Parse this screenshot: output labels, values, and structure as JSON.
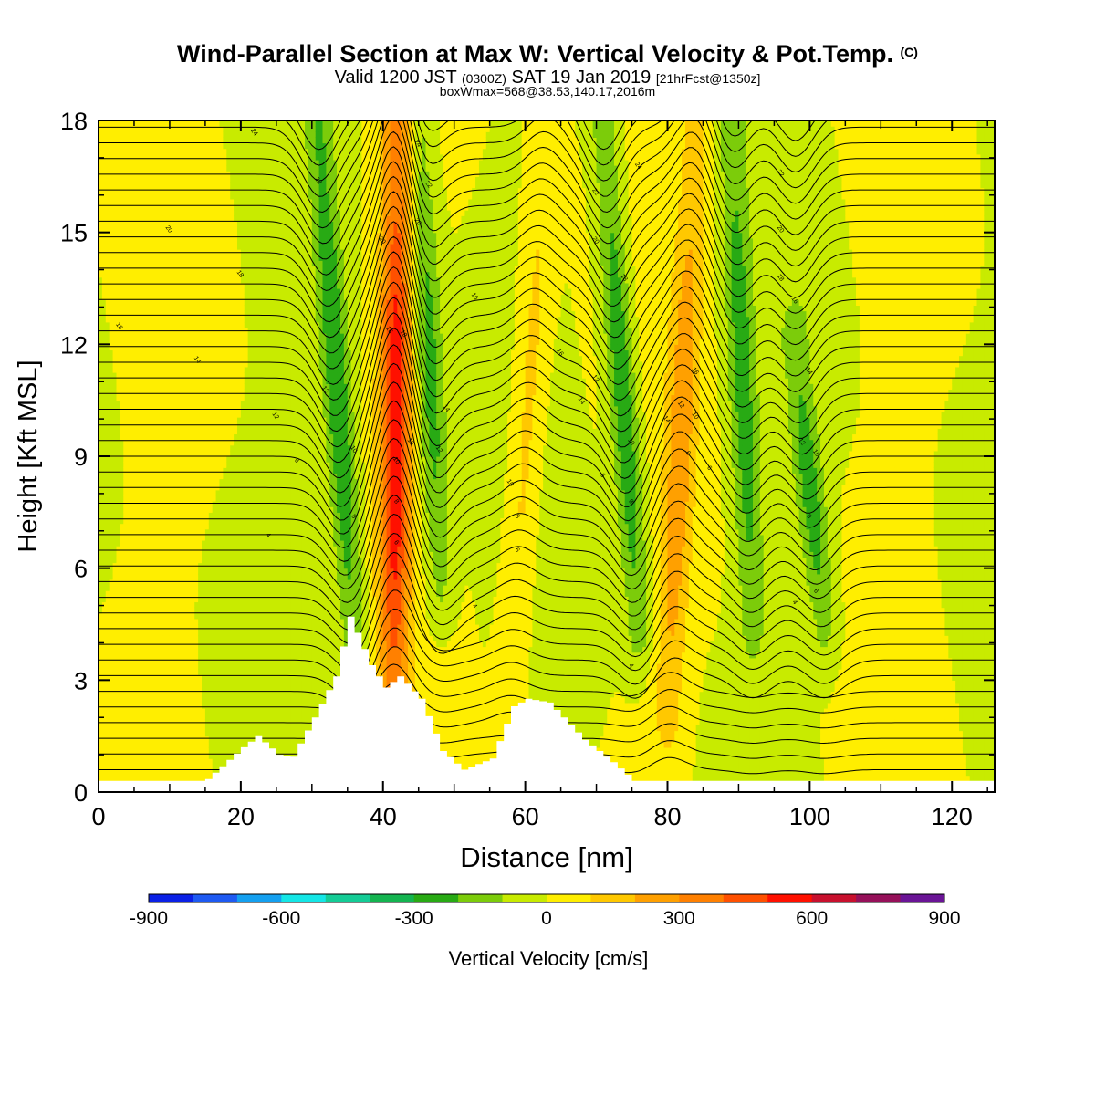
{
  "titles": {
    "main": "Wind-Parallel Section at Max W: Vertical Velocity & Pot.Temp.",
    "main_tag": "(C)",
    "valid_prefix": "Valid 1200 JST",
    "valid_utc": "(0300Z)",
    "valid_date": "SAT 19 Jan 2019",
    "valid_fcst": "[21hrFcst@1350z]",
    "box": "boxWmax=568@38.53,140.17,2016m"
  },
  "chart_data": {
    "type": "heatmap",
    "xlabel": "Distance [nm]",
    "ylabel": "Height [Kft MSL]",
    "xlim": [
      0,
      126
    ],
    "ylim": [
      0,
      18
    ],
    "x_ticks": [
      "0",
      "20",
      "40",
      "60",
      "80",
      "100",
      "120"
    ],
    "y_ticks": [
      "0",
      "3",
      "6",
      "9",
      "12",
      "15",
      "18"
    ],
    "grid": false,
    "colorbar": {
      "label": "Vertical Velocity [cm/s]",
      "placement": "bottom",
      "tick_labels": [
        "-900",
        "-600",
        "-300",
        "0",
        "300",
        "600",
        "900"
      ],
      "levels": [
        -900,
        -800,
        -700,
        -600,
        -500,
        -400,
        -300,
        -200,
        -100,
        0,
        100,
        200,
        300,
        400,
        500,
        600,
        700,
        800,
        900
      ],
      "colors": [
        "#0a20e6",
        "#1e5af2",
        "#14a0f0",
        "#14e6e6",
        "#14cc96",
        "#14b450",
        "#28aa14",
        "#7ccc0a",
        "#c8eb00",
        "#ffee00",
        "#ffc800",
        "#ffa000",
        "#ff8000",
        "#ff5000",
        "#ff1000",
        "#c8102e",
        "#96105a",
        "#6a1496"
      ]
    },
    "terrain_kft": {
      "x": [
        0,
        14,
        15,
        20,
        22,
        25,
        27,
        30,
        33,
        35,
        38,
        40,
        42,
        45,
        48,
        51,
        55,
        58,
        60,
        63,
        65,
        68,
        72,
        75,
        76,
        126
      ],
      "top": [
        0,
        0,
        0.35,
        1.2,
        1.5,
        1.0,
        0.95,
        2.0,
        3.1,
        4.7,
        3.4,
        2.8,
        3.1,
        2.5,
        1.1,
        0.6,
        0.9,
        2.3,
        2.5,
        2.4,
        2.0,
        1.4,
        0.8,
        0.3,
        0,
        0
      ]
    },
    "vertical_velocity_features": [
      {
        "sign": "down",
        "x_bottom_nm": 36,
        "x_top_nm": 31,
        "z_bottom_kft": 4,
        "z_top_kft": 18,
        "peak_cms": -300
      },
      {
        "sign": "up",
        "x_bottom_nm": 41.5,
        "x_top_nm": 42,
        "z_bottom_kft": 3,
        "z_top_kft": 18,
        "peak_cms": 568
      },
      {
        "sign": "down",
        "x_bottom_nm": 48,
        "x_top_nm": 45,
        "z_bottom_kft": 5.5,
        "z_top_kft": 18,
        "peak_cms": -250
      },
      {
        "sign": "up",
        "x_bottom_nm": 58,
        "x_top_nm": 63,
        "z_bottom_kft": 3,
        "z_top_kft": 18,
        "peak_cms": 150
      },
      {
        "sign": "down",
        "x_bottom_nm": 76,
        "x_top_nm": 71,
        "z_bottom_kft": 4.5,
        "z_top_kft": 18,
        "peak_cms": -300
      },
      {
        "sign": "up",
        "x_bottom_nm": 80,
        "x_top_nm": 84,
        "z_bottom_kft": 2,
        "z_top_kft": 18,
        "peak_cms": 250
      },
      {
        "sign": "down",
        "x_bottom_nm": 92,
        "x_top_nm": 89,
        "z_bottom_kft": 4.5,
        "z_top_kft": 18,
        "peak_cms": -250
      },
      {
        "sign": "down",
        "x_bottom_nm": 102,
        "x_top_nm": 98,
        "z_bottom_kft": 4.5,
        "z_top_kft": 12,
        "peak_cms": -250
      }
    ],
    "potential_temperature_labels": [
      {
        "text": "24",
        "x": 22,
        "y": 17.7
      },
      {
        "text": "22",
        "x": 31,
        "y": 16.4
      },
      {
        "text": "20",
        "x": 10,
        "y": 15.1
      },
      {
        "text": "20",
        "x": 40,
        "y": 14.8
      },
      {
        "text": "18",
        "x": 20,
        "y": 13.9
      },
      {
        "text": "18",
        "x": 3,
        "y": 12.5
      },
      {
        "text": "16",
        "x": 41,
        "y": 12.4
      },
      {
        "text": "14",
        "x": 14,
        "y": 11.6
      },
      {
        "text": "12",
        "x": 32,
        "y": 10.8
      },
      {
        "text": "12",
        "x": 25,
        "y": 10.1
      },
      {
        "text": "10",
        "x": 36,
        "y": 9.2
      },
      {
        "text": "8",
        "x": 36,
        "y": 7.4
      },
      {
        "text": "6",
        "x": 28,
        "y": 8.9
      },
      {
        "text": "4",
        "x": 24,
        "y": 6.9
      },
      {
        "text": "24",
        "x": 45,
        "y": 17.4
      },
      {
        "text": "22",
        "x": 46.5,
        "y": 16.3
      },
      {
        "text": "20",
        "x": 45,
        "y": 15.3
      },
      {
        "text": "18",
        "x": 43,
        "y": 12.3
      },
      {
        "text": "16",
        "x": 44,
        "y": 9.4
      },
      {
        "text": "14",
        "x": 49,
        "y": 10.3
      },
      {
        "text": "12",
        "x": 48,
        "y": 9.2
      },
      {
        "text": "10",
        "x": 42,
        "y": 8.9
      },
      {
        "text": "8",
        "x": 42,
        "y": 7.8
      },
      {
        "text": "6",
        "x": 42,
        "y": 6.7
      },
      {
        "text": "4",
        "x": 53,
        "y": 5.0
      },
      {
        "text": "16",
        "x": 53,
        "y": 13.3
      },
      {
        "text": "16",
        "x": 65,
        "y": 11.8
      },
      {
        "text": "22",
        "x": 70,
        "y": 16.1
      },
      {
        "text": "20",
        "x": 70,
        "y": 14.8
      },
      {
        "text": "14",
        "x": 68,
        "y": 10.5
      },
      {
        "text": "12",
        "x": 70,
        "y": 11.1
      },
      {
        "text": "10",
        "x": 58,
        "y": 8.3
      },
      {
        "text": "8",
        "x": 59,
        "y": 7.4
      },
      {
        "text": "6",
        "x": 59,
        "y": 6.5
      },
      {
        "text": "6",
        "x": 71,
        "y": 8.5
      },
      {
        "text": "24",
        "x": 76,
        "y": 16.8
      },
      {
        "text": "18",
        "x": 74,
        "y": 13.8
      },
      {
        "text": "16",
        "x": 84,
        "y": 11.3
      },
      {
        "text": "14",
        "x": 80,
        "y": 10.0
      },
      {
        "text": "12",
        "x": 82,
        "y": 10.4
      },
      {
        "text": "10",
        "x": 75,
        "y": 9.4
      },
      {
        "text": "10",
        "x": 84,
        "y": 10.1
      },
      {
        "text": "8",
        "x": 75,
        "y": 7.8
      },
      {
        "text": "6",
        "x": 83,
        "y": 9.1
      },
      {
        "text": "6",
        "x": 86,
        "y": 8.7
      },
      {
        "text": "4",
        "x": 75,
        "y": 3.4
      },
      {
        "text": "22",
        "x": 96,
        "y": 16.6
      },
      {
        "text": "20",
        "x": 96,
        "y": 15.1
      },
      {
        "text": "18",
        "x": 96,
        "y": 13.8
      },
      {
        "text": "16",
        "x": 98,
        "y": 13.2
      },
      {
        "text": "14",
        "x": 100,
        "y": 11.3
      },
      {
        "text": "12",
        "x": 99,
        "y": 9.4
      },
      {
        "text": "10",
        "x": 101,
        "y": 9.1
      },
      {
        "text": "8",
        "x": 100,
        "y": 7.4
      },
      {
        "text": "6",
        "x": 101,
        "y": 5.4
      },
      {
        "text": "4",
        "x": 98,
        "y": 5.1
      }
    ]
  }
}
